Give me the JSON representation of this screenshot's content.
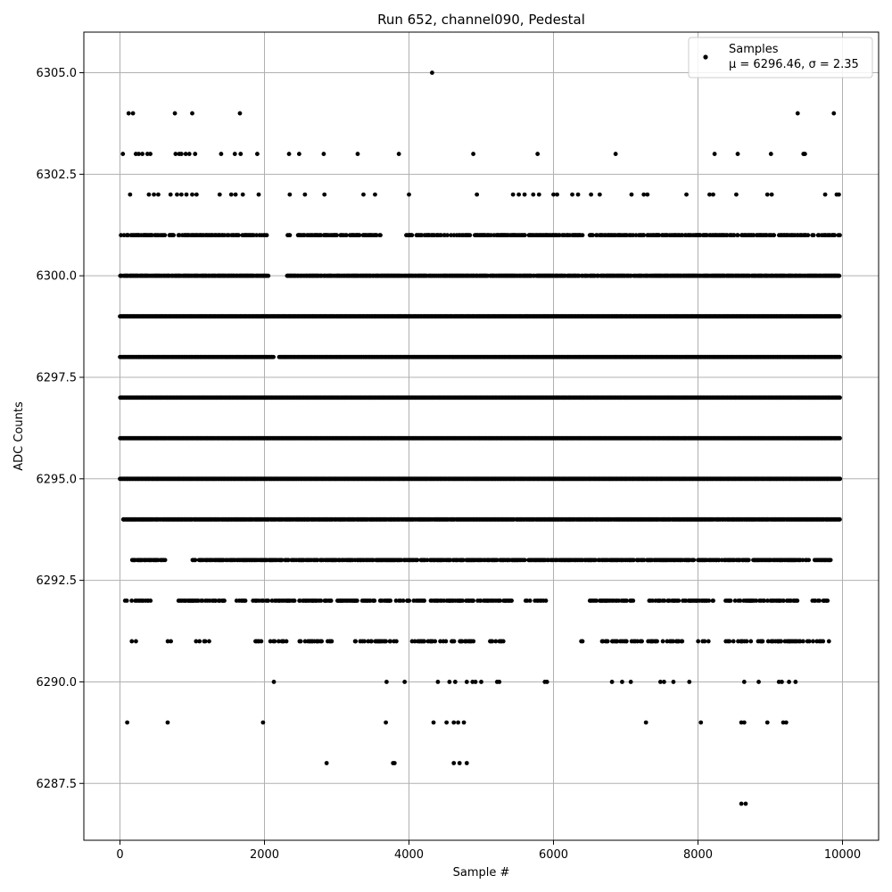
{
  "chart_data": {
    "type": "scatter",
    "title": "Run 652, channel090, Pedestal",
    "xlabel": "Sample #",
    "ylabel": "ADC Counts",
    "xlim": [
      -500,
      10500
    ],
    "ylim": [
      6286.1,
      6306.0
    ],
    "x_ticks": [
      0,
      2000,
      4000,
      6000,
      8000,
      10000
    ],
    "y_ticks": [
      6287.5,
      6290.0,
      6292.5,
      6295.0,
      6297.5,
      6300.0,
      6302.5,
      6305.0
    ],
    "x_tick_labels": [
      "0",
      "2000",
      "4000",
      "6000",
      "8000",
      "10000"
    ],
    "y_tick_labels": [
      "6287.5",
      "6290.0",
      "6292.5",
      "6295.0",
      "6297.5",
      "6300.0",
      "6302.5",
      "6305.0"
    ],
    "grid": true,
    "legend": {
      "placement": "top-right",
      "label": "Samples",
      "stats": "μ = 6296.46, σ = 2.35"
    },
    "series": [
      {
        "name": "Samples",
        "color": "#000000",
        "marker": "circle",
        "points": [
          {
            "x": 4320,
            "y": 6305
          },
          {
            "x": 120,
            "y": 6304
          },
          {
            "x": 180,
            "y": 6304
          },
          {
            "x": 760,
            "y": 6304
          },
          {
            "x": 1000,
            "y": 6304
          },
          {
            "x": 1660,
            "y": 6304
          },
          {
            "x": 9380,
            "y": 6304
          },
          {
            "x": 9880,
            "y": 6304
          },
          {
            "x": 40,
            "y": 6303
          },
          {
            "x": 220,
            "y": 6303
          },
          {
            "x": 260,
            "y": 6303
          },
          {
            "x": 310,
            "y": 6303
          },
          {
            "x": 380,
            "y": 6303
          },
          {
            "x": 420,
            "y": 6303
          },
          {
            "x": 770,
            "y": 6303
          },
          {
            "x": 820,
            "y": 6303
          },
          {
            "x": 850,
            "y": 6303
          },
          {
            "x": 910,
            "y": 6303
          },
          {
            "x": 960,
            "y": 6303
          },
          {
            "x": 1040,
            "y": 6303
          },
          {
            "x": 1400,
            "y": 6303
          },
          {
            "x": 1590,
            "y": 6303
          },
          {
            "x": 1670,
            "y": 6303
          },
          {
            "x": 1900,
            "y": 6303
          },
          {
            "x": 2340,
            "y": 6303
          },
          {
            "x": 2480,
            "y": 6303
          },
          {
            "x": 2820,
            "y": 6303
          },
          {
            "x": 3290,
            "y": 6303
          },
          {
            "x": 3860,
            "y": 6303
          },
          {
            "x": 4890,
            "y": 6303
          },
          {
            "x": 5780,
            "y": 6303
          },
          {
            "x": 6860,
            "y": 6303
          },
          {
            "x": 8230,
            "y": 6303
          },
          {
            "x": 8550,
            "y": 6303
          },
          {
            "x": 9010,
            "y": 6303
          },
          {
            "x": 9460,
            "y": 6303
          },
          {
            "x": 9480,
            "y": 6303
          },
          {
            "x": 140,
            "y": 6302
          },
          {
            "x": 400,
            "y": 6302
          },
          {
            "x": 470,
            "y": 6302
          },
          {
            "x": 530,
            "y": 6302
          },
          {
            "x": 700,
            "y": 6302
          },
          {
            "x": 790,
            "y": 6302
          },
          {
            "x": 850,
            "y": 6302
          },
          {
            "x": 920,
            "y": 6302
          },
          {
            "x": 1000,
            "y": 6302
          },
          {
            "x": 1060,
            "y": 6302
          },
          {
            "x": 1380,
            "y": 6302
          },
          {
            "x": 1540,
            "y": 6302
          },
          {
            "x": 1600,
            "y": 6302
          },
          {
            "x": 1700,
            "y": 6302
          },
          {
            "x": 1920,
            "y": 6302
          },
          {
            "x": 2350,
            "y": 6302
          },
          {
            "x": 2560,
            "y": 6302
          },
          {
            "x": 2830,
            "y": 6302
          },
          {
            "x": 3370,
            "y": 6302
          },
          {
            "x": 3530,
            "y": 6302
          },
          {
            "x": 4000,
            "y": 6302
          },
          {
            "x": 4940,
            "y": 6302
          },
          {
            "x": 5440,
            "y": 6302
          },
          {
            "x": 5520,
            "y": 6302
          },
          {
            "x": 5600,
            "y": 6302
          },
          {
            "x": 5720,
            "y": 6302
          },
          {
            "x": 5800,
            "y": 6302
          },
          {
            "x": 6000,
            "y": 6302
          },
          {
            "x": 6050,
            "y": 6302
          },
          {
            "x": 6260,
            "y": 6302
          },
          {
            "x": 6340,
            "y": 6302
          },
          {
            "x": 6520,
            "y": 6302
          },
          {
            "x": 6640,
            "y": 6302
          },
          {
            "x": 7080,
            "y": 6302
          },
          {
            "x": 7250,
            "y": 6302
          },
          {
            "x": 7300,
            "y": 6302
          },
          {
            "x": 7840,
            "y": 6302
          },
          {
            "x": 8160,
            "y": 6302
          },
          {
            "x": 8210,
            "y": 6302
          },
          {
            "x": 8530,
            "y": 6302
          },
          {
            "x": 8960,
            "y": 6302
          },
          {
            "x": 9020,
            "y": 6302
          },
          {
            "x": 9760,
            "y": 6302
          },
          {
            "x": 9920,
            "y": 6302
          },
          {
            "x": 9950,
            "y": 6302
          },
          {
            "x": 100,
            "y": 6289
          },
          {
            "x": 660,
            "y": 6289
          },
          {
            "x": 1980,
            "y": 6289
          },
          {
            "x": 3680,
            "y": 6289
          },
          {
            "x": 4340,
            "y": 6289
          },
          {
            "x": 4520,
            "y": 6289
          },
          {
            "x": 4620,
            "y": 6289
          },
          {
            "x": 4680,
            "y": 6289
          },
          {
            "x": 4760,
            "y": 6289
          },
          {
            "x": 7280,
            "y": 6289
          },
          {
            "x": 8040,
            "y": 6289
          },
          {
            "x": 8600,
            "y": 6289
          },
          {
            "x": 8640,
            "y": 6289
          },
          {
            "x": 8960,
            "y": 6289
          },
          {
            "x": 9180,
            "y": 6289
          },
          {
            "x": 9220,
            "y": 6289
          },
          {
            "x": 2860,
            "y": 6288
          },
          {
            "x": 3780,
            "y": 6288
          },
          {
            "x": 3800,
            "y": 6288
          },
          {
            "x": 4620,
            "y": 6288
          },
          {
            "x": 4700,
            "y": 6288
          },
          {
            "x": 4800,
            "y": 6288
          },
          {
            "x": 8600,
            "y": 6287
          },
          {
            "x": 8660,
            "y": 6287
          },
          {
            "x": 2130,
            "y": 6290
          },
          {
            "x": 3690,
            "y": 6290
          },
          {
            "x": 3940,
            "y": 6290
          },
          {
            "x": 4400,
            "y": 6290
          },
          {
            "x": 4560,
            "y": 6290
          },
          {
            "x": 4640,
            "y": 6290
          },
          {
            "x": 4800,
            "y": 6290
          },
          {
            "x": 4880,
            "y": 6290
          },
          {
            "x": 4920,
            "y": 6290
          },
          {
            "x": 5000,
            "y": 6290
          },
          {
            "x": 5220,
            "y": 6290
          },
          {
            "x": 5250,
            "y": 6290
          },
          {
            "x": 5880,
            "y": 6290
          },
          {
            "x": 5910,
            "y": 6290
          },
          {
            "x": 6810,
            "y": 6290
          },
          {
            "x": 6950,
            "y": 6290
          },
          {
            "x": 7070,
            "y": 6290
          },
          {
            "x": 7480,
            "y": 6290
          },
          {
            "x": 7530,
            "y": 6290
          },
          {
            "x": 7660,
            "y": 6290
          },
          {
            "x": 7880,
            "y": 6290
          },
          {
            "x": 8640,
            "y": 6290
          },
          {
            "x": 8840,
            "y": 6290
          },
          {
            "x": 9120,
            "y": 6290
          },
          {
            "x": 9160,
            "y": 6290
          },
          {
            "x": 9260,
            "y": 6290
          },
          {
            "x": 9350,
            "y": 6290
          }
        ],
        "bands": [
          {
            "y": 6301,
            "ranges": [
              [
                0,
                2030
              ],
              [
                2320,
                3600
              ],
              [
                3960,
                4860
              ],
              [
                4900,
                9960
              ]
            ],
            "density": 0.55
          },
          {
            "y": 6300,
            "ranges": [
              [
                0,
                2050
              ],
              [
                2310,
                9960
              ]
            ],
            "density": 0.85
          },
          {
            "y": 6299,
            "ranges": [
              [
                0,
                9960
              ]
            ],
            "density": 1.0
          },
          {
            "y": 6298,
            "ranges": [
              [
                0,
                2120
              ],
              [
                2200,
                9960
              ]
            ],
            "density": 1.0
          },
          {
            "y": 6297,
            "ranges": [
              [
                0,
                9960
              ]
            ],
            "density": 1.0
          },
          {
            "y": 6296,
            "ranges": [
              [
                0,
                9960
              ]
            ],
            "density": 1.0
          },
          {
            "y": 6295,
            "ranges": [
              [
                0,
                9960
              ]
            ],
            "density": 1.0
          },
          {
            "y": 6294,
            "ranges": [
              [
                40,
                9960
              ]
            ],
            "density": 0.95
          },
          {
            "y": 6293,
            "ranges": [
              [
                160,
                620
              ],
              [
                1000,
                9830
              ]
            ],
            "density": 0.65
          },
          {
            "y": 6292,
            "ranges": [
              [
                60,
                420
              ],
              [
                800,
                1440
              ],
              [
                1600,
                2920
              ],
              [
                3000,
                5420
              ],
              [
                5600,
                5900
              ],
              [
                6500,
                7120
              ],
              [
                7320,
                8220
              ],
              [
                8380,
                9380
              ],
              [
                9580,
                9820
              ]
            ],
            "density": 0.45
          },
          {
            "y": 6291,
            "ranges": [
              [
                80,
                220
              ],
              [
                640,
                720
              ],
              [
                1040,
                1330
              ],
              [
                1800,
                2300
              ],
              [
                2480,
                2960
              ],
              [
                3200,
                3820
              ],
              [
                4020,
                4900
              ],
              [
                5080,
                5300
              ],
              [
                5880,
                5900
              ],
              [
                6380,
                6400
              ],
              [
                6660,
                7800
              ],
              [
                8000,
                8160
              ],
              [
                8360,
                9120
              ],
              [
                9100,
                9820
              ]
            ],
            "density": 0.35
          }
        ]
      }
    ]
  }
}
